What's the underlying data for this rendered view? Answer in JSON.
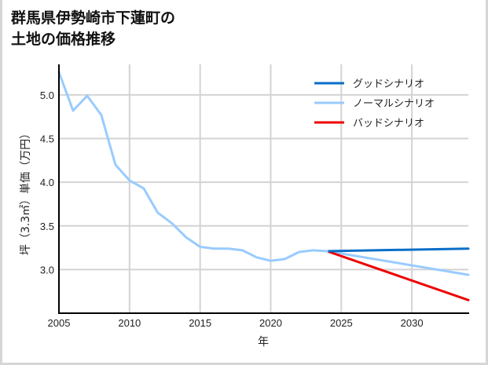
{
  "title": {
    "line1": "群馬県伊勢崎市下蓮町の",
    "line2": "土地の価格推移"
  },
  "colors": {
    "good": "#0a6ec8",
    "normal": "#99cbff",
    "bad": "#ee0000",
    "grid": "#d3d3d3",
    "axis": "#000000"
  },
  "chart_data": {
    "type": "line",
    "title": "群馬県伊勢崎市下蓮町の土地の価格推移",
    "xlabel": "年",
    "ylabel": "坪（3.3㎡）単価（万円）",
    "xlim": [
      2005,
      2034
    ],
    "ylim": [
      2.5,
      5.35
    ],
    "xticks": [
      "2005",
      "2010",
      "2015",
      "2020",
      "2025",
      "2030"
    ],
    "yticks": [
      "3.0",
      "3.5",
      "4.0",
      "4.5",
      "5.0"
    ],
    "grid": true,
    "legend_position": "upper right",
    "series": [
      {
        "name": "ノーマルシナリオ",
        "role": "historical",
        "x": [
          2005,
          2006,
          2007,
          2008,
          2009,
          2010,
          2011,
          2012,
          2013,
          2014,
          2015,
          2016,
          2017,
          2018,
          2019,
          2020,
          2021,
          2022,
          2023,
          2024
        ],
        "values": [
          5.26,
          4.82,
          4.99,
          4.77,
          4.2,
          4.02,
          3.93,
          3.65,
          3.53,
          3.37,
          3.26,
          3.24,
          3.24,
          3.22,
          3.14,
          3.1,
          3.12,
          3.2,
          3.22,
          3.21
        ]
      },
      {
        "name": "グッドシナリオ",
        "x": [
          2024,
          2034
        ],
        "values": [
          3.21,
          3.24
        ]
      },
      {
        "name": "ノーマルシナリオ",
        "x": [
          2024,
          2034
        ],
        "values": [
          3.21,
          2.94
        ]
      },
      {
        "name": "バッドシナリオ",
        "x": [
          2024,
          2034
        ],
        "values": [
          3.21,
          2.65
        ]
      }
    ]
  },
  "legend": [
    {
      "label": "グッドシナリオ",
      "color": "#0a6ec8"
    },
    {
      "label": "ノーマルシナリオ",
      "color": "#99cbff"
    },
    {
      "label": "バッドシナリオ",
      "color": "#ee0000"
    }
  ]
}
